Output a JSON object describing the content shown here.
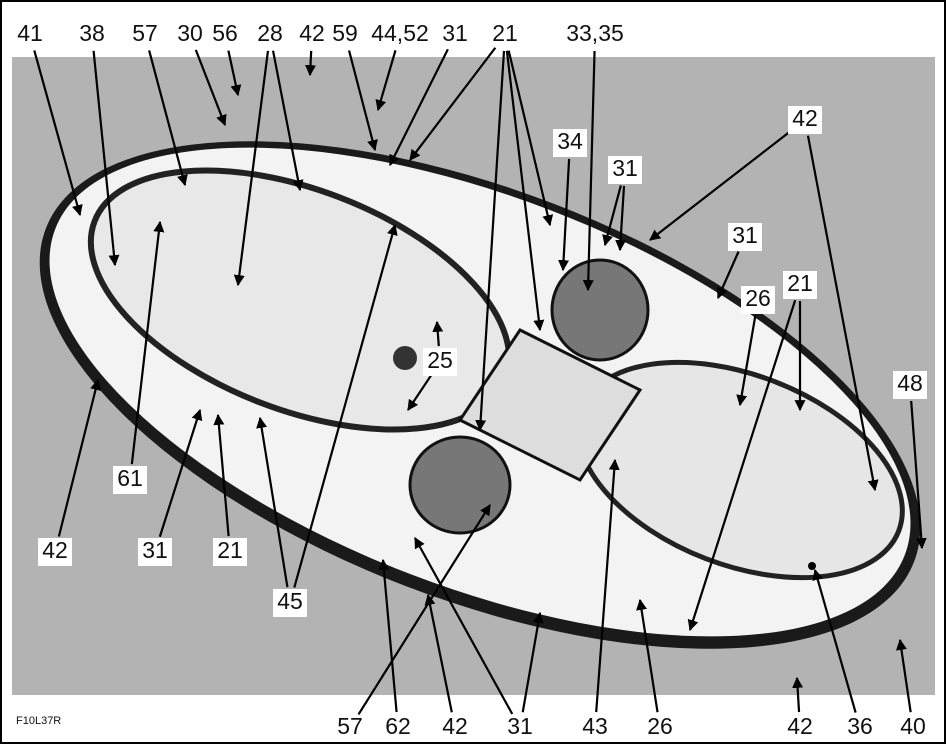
{
  "figure_code": "F10L37R",
  "callouts": [
    "41",
    "38",
    "57",
    "30",
    "56",
    "28",
    "42",
    "59",
    "44,52",
    "31",
    "21",
    "33,35",
    "42",
    "34",
    "31",
    "31",
    "26",
    "21",
    "48",
    "25",
    "61",
    "42",
    "31",
    "21",
    "45",
    "57",
    "62",
    "42",
    "31",
    "43",
    "26",
    "42",
    "36",
    "40"
  ]
}
